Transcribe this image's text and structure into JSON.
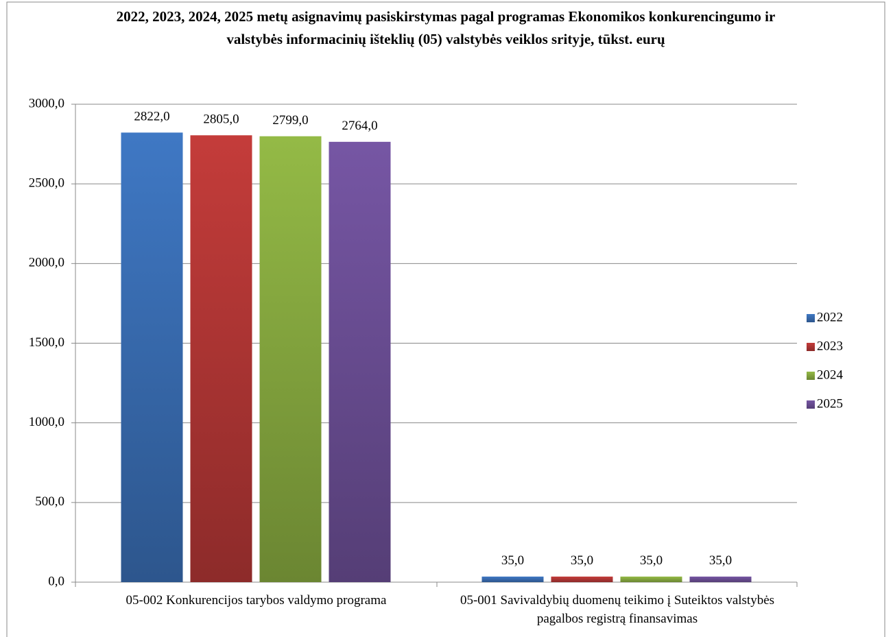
{
  "chart_data": {
    "type": "bar",
    "title": "2022, 2023, 2024, 2025 metų asignavimų pasiskirstymas pagal programas Ekonomikos konkurencingumo ir valstybės informacinių išteklių (05) valstybės veiklos srityje, tūkst. eurų",
    "categories": [
      "05-002 Konkurencijos tarybos valdymo programa",
      "05-001 Savivaldybių duomenų teikimo į Suteiktos valstybės pagalbos registrą finansavimas"
    ],
    "series": [
      {
        "name": "2022",
        "color": "#3f78c4",
        "values": [
          2822,
          35
        ],
        "value_labels": [
          "2822,0",
          "35,0"
        ]
      },
      {
        "name": "2023",
        "color": "#c43c3a",
        "values": [
          2805,
          35
        ],
        "value_labels": [
          "2805,0",
          "35,0"
        ]
      },
      {
        "name": "2024",
        "color": "#94ba46",
        "values": [
          2799,
          35
        ],
        "value_labels": [
          "2799,0",
          "35,0"
        ]
      },
      {
        "name": "2025",
        "color": "#7656a4",
        "values": [
          2764,
          35
        ],
        "value_labels": [
          "2764,0",
          "35,0"
        ]
      }
    ],
    "ylim": [
      0,
      3000
    ],
    "yticks": [
      {
        "value": 0,
        "label": "0,0"
      },
      {
        "value": 500,
        "label": "500,0"
      },
      {
        "value": 1000,
        "label": "1000,0"
      },
      {
        "value": 1500,
        "label": "1500,0"
      },
      {
        "value": 2000,
        "label": "2000,0"
      },
      {
        "value": 2500,
        "label": "2500,0"
      },
      {
        "value": 3000,
        "label": "3000,0"
      }
    ],
    "grid": true,
    "legend": "right"
  }
}
